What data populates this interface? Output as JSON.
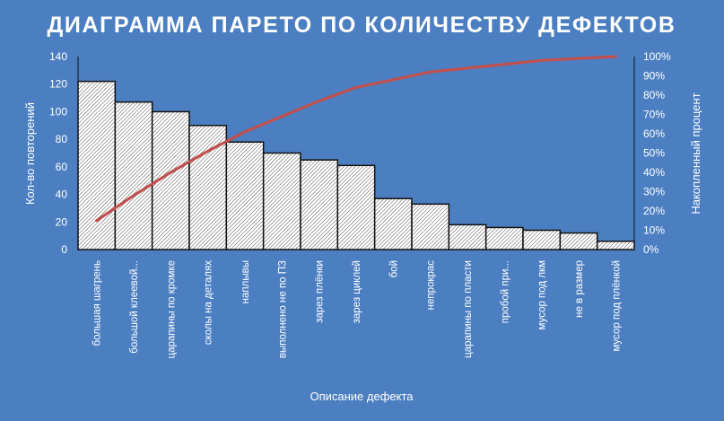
{
  "chart_data": {
    "type": "bar",
    "title": "ДИАГРАММА ПАРЕТО ПО КОЛИЧЕСТВУ ДЕФЕКТОВ",
    "xlabel": "Описание дефекта",
    "ylabel": "Кол-во повторений",
    "y2label": "Накопленный процент",
    "ylim": [
      0,
      140
    ],
    "y2lim": [
      0,
      100
    ],
    "yticks": [
      "0",
      "20",
      "40",
      "60",
      "80",
      "100",
      "120",
      "140"
    ],
    "y2ticks": [
      "0%",
      "10%",
      "20%",
      "30%",
      "40%",
      "50%",
      "60%",
      "70%",
      "80%",
      "90%",
      "100%"
    ],
    "categories": [
      "большая шагрень",
      "большой клеевой...",
      "царапины по кромке",
      "сколы на деталях",
      "наплывы",
      "выполнено не по ПЗ",
      "зарез плёнки",
      "зарез циклей",
      "бой",
      "непрокрас",
      "царапины по пласти",
      "пробой при...",
      "мусор под лкм",
      "не в размер",
      "мусор под плёнкой"
    ],
    "series": [
      {
        "type": "bar",
        "values": [
          122,
          107,
          100,
          90,
          78,
          70,
          65,
          61,
          37,
          33,
          18,
          16,
          14,
          12,
          6
        ]
      },
      {
        "type": "line",
        "axis": "right",
        "values": [
          15,
          28,
          40,
          51,
          61,
          69,
          77,
          84,
          88,
          92,
          94,
          96,
          98,
          99,
          100
        ]
      }
    ],
    "line_color": "#c0504d",
    "bar_pattern": "diagonal-hatch",
    "background": "#4c7fc1"
  }
}
